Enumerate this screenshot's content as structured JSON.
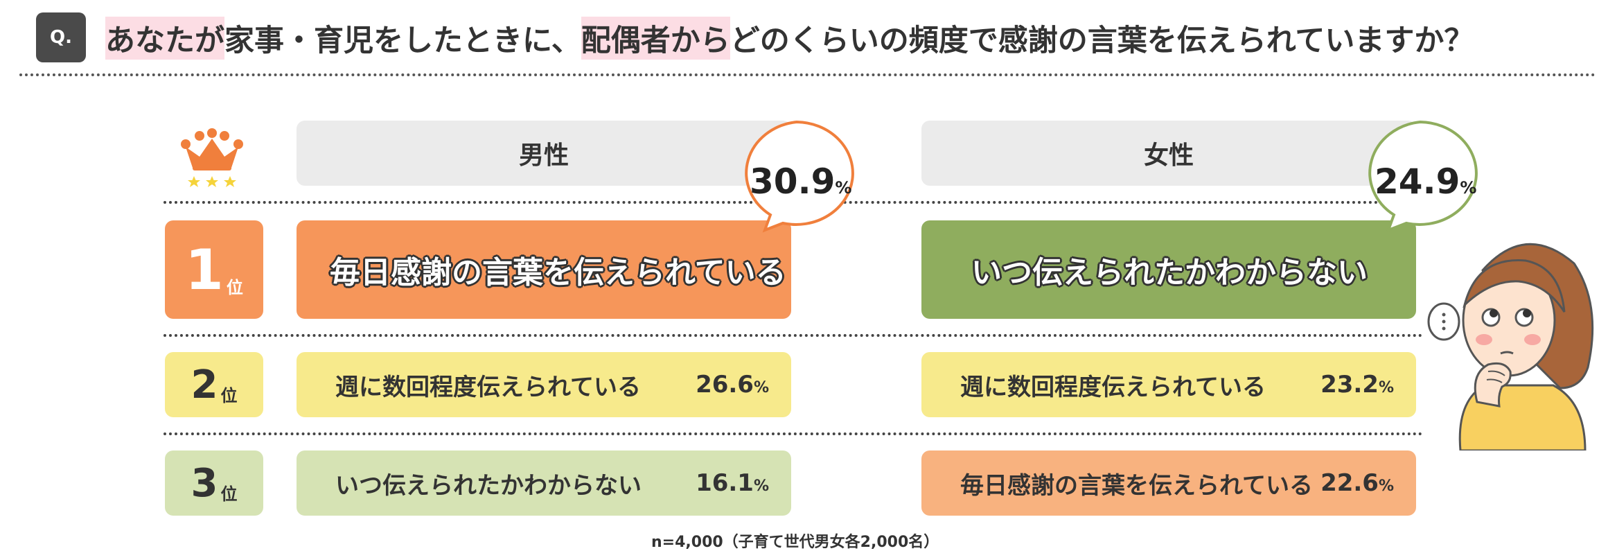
{
  "header": {
    "badge": "Q.",
    "question_parts": [
      {
        "text": "あなたが",
        "highlight": true
      },
      {
        "text": "家事・育児をしたときに、",
        "highlight": false
      },
      {
        "text": "配偶者から",
        "highlight": true
      },
      {
        "text": "どのくらいの頻度で感謝の言葉を伝えられていますか？",
        "highlight": false
      }
    ]
  },
  "columns": {
    "male": "男性",
    "female": "女性"
  },
  "rank_suffix": "位",
  "ranks": [
    "1",
    "2",
    "3"
  ],
  "male": {
    "rank1": {
      "label": "毎日感謝の言葉を伝えられている",
      "value": "30.9"
    },
    "rank2": {
      "label": "週に数回程度伝えられている",
      "value": "26.6"
    },
    "rank3": {
      "label": "いつ伝えられたかわからない",
      "value": "16.1"
    }
  },
  "female": {
    "rank1": {
      "label": "いつ伝えられたかわからない",
      "value": "24.9"
    },
    "rank2": {
      "label": "週に数回程度伝えられている",
      "value": "23.2"
    },
    "rank3": {
      "label": "毎日感謝の言葉を伝えられている",
      "value": "22.6"
    }
  },
  "unit": "%",
  "footnote": "n=4,000（子育て世代男女各2,000名）",
  "colors": {
    "rank1_orange": "#f6965a",
    "rank1_green": "#8fad5e",
    "yellow": "#f7ea8c",
    "light_green": "#d6e3b4",
    "light_orange": "#f8b27f",
    "highlight_pink": "#fcdde4"
  },
  "icons": {
    "crown": "crown-icon",
    "person": "thinking-woman-illustration"
  }
}
